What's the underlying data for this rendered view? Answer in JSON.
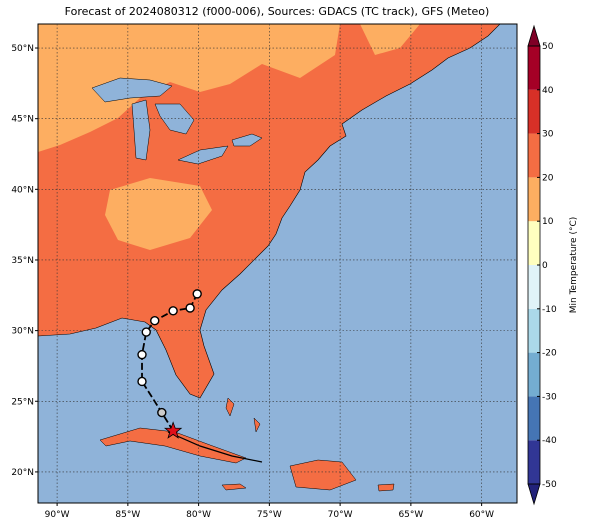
{
  "title": "Forecast of 2024080312 (f000-006), Sources: GDACS (TC track), GFS (Meteo)",
  "lon_lim": [
    -91.35,
    -57.5
  ],
  "lat_lim": [
    17.8,
    51.7
  ],
  "lon_ticks": [
    {
      "value": -90,
      "label": "90°W"
    },
    {
      "value": -85,
      "label": "85°W"
    },
    {
      "value": -80,
      "label": "80°W"
    },
    {
      "value": -75,
      "label": "75°W"
    },
    {
      "value": -70,
      "label": "70°W"
    },
    {
      "value": -65,
      "label": "65°W"
    },
    {
      "value": -60,
      "label": "60°W"
    }
  ],
  "lat_ticks": [
    {
      "value": 20,
      "label": "20°N"
    },
    {
      "value": 25,
      "label": "25°N"
    },
    {
      "value": 30,
      "label": "30°N"
    },
    {
      "value": 35,
      "label": "35°N"
    },
    {
      "value": 40,
      "label": "40°N"
    },
    {
      "value": 45,
      "label": "45°N"
    },
    {
      "value": 50,
      "label": "50°N"
    }
  ],
  "grid": true,
  "colorbar": {
    "label": "Min Temperature (°C)",
    "lim": [
      -50,
      50
    ],
    "ticks": [
      -50,
      -40,
      -30,
      -20,
      -10,
      0,
      10,
      20,
      30,
      40,
      50
    ],
    "colors": [
      "#313695",
      "#4575b4",
      "#74add1",
      "#abd9e9",
      "#e0f3f8",
      "#ffffbf",
      "#fdae61",
      "#f46d43",
      "#d73027",
      "#a50026"
    ],
    "under": "#22227a",
    "over": "#7f0026"
  },
  "track": {
    "lon": [
      -81.8,
      -82.6,
      -84.0,
      -84.0,
      -83.7,
      -83.1,
      -81.8,
      -80.6,
      -80.1
    ],
    "lat": [
      22.9,
      24.2,
      26.4,
      28.3,
      29.9,
      30.7,
      31.4,
      31.6,
      32.6
    ]
  }
}
